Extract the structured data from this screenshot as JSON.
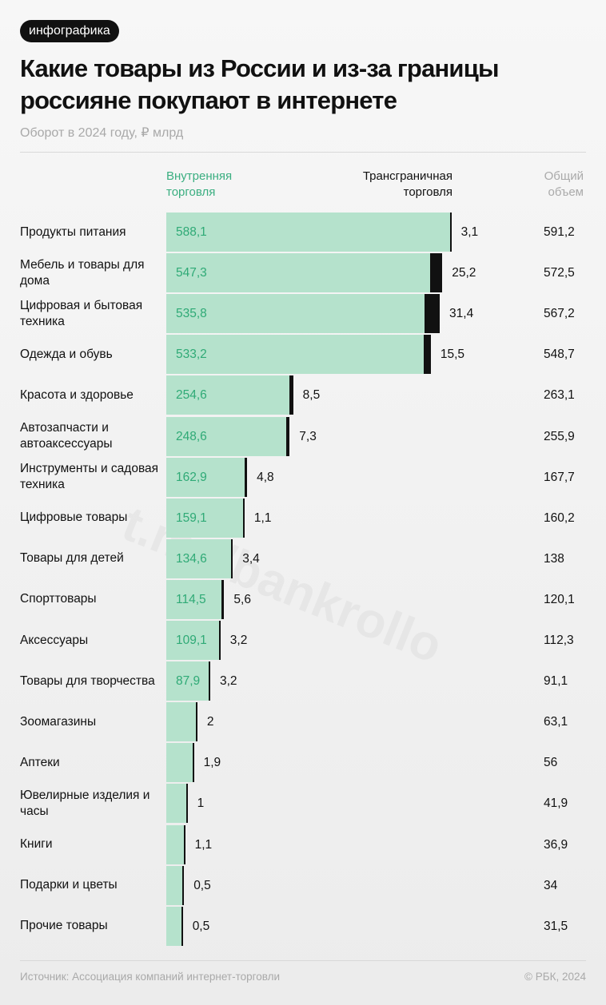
{
  "badge": "инфографика",
  "title": "Какие товары из России и из-за границы россияне покупают в интернете",
  "subtitle": "Оборот в 2024 году, ₽ млрд",
  "watermark": "t.me/bankrollo",
  "footer": {
    "source": "Источник: Ассоциация компаний интернет-торговли",
    "copyright": "© РБК, 2024"
  },
  "colors": {
    "domestic": "#b5e2cc",
    "domestic_label": "#2faa76",
    "cross_border": "#111111"
  },
  "chart_data": {
    "type": "bar",
    "orientation": "horizontal",
    "stacked": true,
    "title": "Какие товары из России и из-за границы россияне покупают в интернете",
    "subtitle": "Оборот в 2024 году, ₽ млрд",
    "column_headers": {
      "domestic": "Внутренняя торговля",
      "cross": "Трансграничная торговля",
      "total": "Общий объем"
    },
    "categories": [
      "Продукты питания",
      "Мебель и товары для дома",
      "Цифровая и бытовая техника",
      "Одежда и обувь",
      "Красота и здоровье",
      "Автозапчасти и автоаксессуары",
      "Инструменты и садовая техника",
      "Цифровые товары",
      "Товары для детей",
      "Спорттовары",
      "Аксессуары",
      "Товары для творчества",
      "Зоомагазины",
      "Аптеки",
      "Ювелирные изделия и часы",
      "Книги",
      "Подарки и цветы",
      "Прочие товары"
    ],
    "series": [
      {
        "name": "Внутренняя торговля",
        "values": [
          588.1,
          547.3,
          535.8,
          533.2,
          254.6,
          248.6,
          162.9,
          159.1,
          134.6,
          114.5,
          109.1,
          87.9,
          61.1,
          54.1,
          40.9,
          35.8,
          33.5,
          31.0
        ],
        "labels": [
          "588,1",
          "547,3",
          "535,8",
          "533,2",
          "254,6",
          "248,6",
          "162,9",
          "159,1",
          "134,6",
          "114,5",
          "109,1",
          "87,9",
          "",
          "",
          "",
          "",
          "",
          ""
        ]
      },
      {
        "name": "Трансграничная торговля",
        "values": [
          3.1,
          25.2,
          31.4,
          15.5,
          8.5,
          7.3,
          4.8,
          1.1,
          3.4,
          5.6,
          3.2,
          3.2,
          2,
          1.9,
          1,
          1.1,
          0.5,
          0.5
        ],
        "labels": [
          "3,1",
          "25,2",
          "31,4",
          "15,5",
          "8,5",
          "7,3",
          "4,8",
          "1,1",
          "3,4",
          "5,6",
          "3,2",
          "3,2",
          "2",
          "1,9",
          "1",
          "1,1",
          "0,5",
          "0,5"
        ]
      }
    ],
    "totals": [
      "591,2",
      "572,5",
      "567,2",
      "548,7",
      "263,1",
      "255,9",
      "167,7",
      "160,2",
      "138",
      "120,1",
      "112,3",
      "91,1",
      "63,1",
      "56",
      "41,9",
      "36,9",
      "34",
      "31,5"
    ],
    "grid": false,
    "legend": "column headers on top"
  }
}
